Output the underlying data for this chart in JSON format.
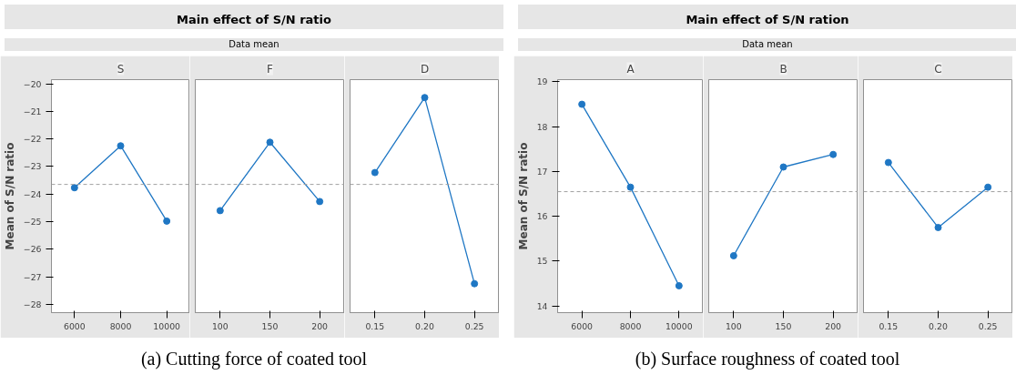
{
  "chart_data": [
    {
      "type": "line",
      "title": "S",
      "ylabel": "Mean of S/N ratio",
      "annotations": [
        "Main effect of S/N ratio",
        "Data mean",
        "(a) Cutting force of coated tool"
      ],
      "categories": [
        "6000",
        "8000",
        "10000"
      ],
      "values": [
        -23.77,
        -22.25,
        -24.98
      ],
      "color": "#1f77c4",
      "marker": "circle",
      "ylim": [
        -28.3,
        -19.85
      ],
      "yticks": [
        -28,
        -27,
        -26,
        -25,
        -24,
        -23,
        -22,
        -21,
        -20
      ],
      "ref_lines": [
        {
          "axis": "y",
          "value": -23.65,
          "color": "#a0a0a0",
          "line_style": "dashed"
        }
      ],
      "grid": false
    },
    {
      "type": "line",
      "title": "F",
      "categories": [
        "100",
        "150",
        "200"
      ],
      "values": [
        -24.6,
        -22.12,
        -24.27
      ],
      "color": "#1f77c4",
      "marker": "circle",
      "ylim": [
        -28.3,
        -19.85
      ],
      "yticks": [
        -28,
        -27,
        -26,
        -25,
        -24,
        -23,
        -22,
        -21,
        -20
      ],
      "tick_labels": "x",
      "ref_lines": [
        {
          "axis": "y",
          "value": -23.65,
          "color": "#a0a0a0",
          "line_style": "dashed"
        }
      ],
      "grid": false
    },
    {
      "type": "line",
      "title": "D",
      "categories": [
        "0.15",
        "0.20",
        "0.25"
      ],
      "values": [
        -23.22,
        -20.5,
        -27.25
      ],
      "color": "#1f77c4",
      "marker": "circle",
      "ylim": [
        -28.3,
        -19.85
      ],
      "yticks": [
        -28,
        -27,
        -26,
        -25,
        -24,
        -23,
        -22,
        -21,
        -20
      ],
      "tick_labels": "x",
      "ref_lines": [
        {
          "axis": "y",
          "value": -23.65,
          "color": "#a0a0a0",
          "line_style": "dashed"
        }
      ],
      "grid": false
    },
    {
      "type": "line",
      "title": "A",
      "ylabel": "Mean of S/N ratio",
      "annotations": [
        "Main effect of S/N ration",
        "Data mean",
        "(b) Surface roughness of coated tool"
      ],
      "categories": [
        "6000",
        "8000",
        "10000"
      ],
      "values": [
        18.5,
        16.65,
        14.45
      ],
      "color": "#1f77c4",
      "marker": "circle",
      "ylim": [
        13.85,
        19.05
      ],
      "yticks": [
        14,
        15,
        16,
        17,
        18,
        19
      ],
      "ref_lines": [
        {
          "axis": "y",
          "value": 16.55,
          "color": "#a0a0a0",
          "line_style": "dashed"
        }
      ],
      "grid": false
    },
    {
      "type": "line",
      "title": "B",
      "categories": [
        "100",
        "150",
        "200"
      ],
      "values": [
        15.12,
        17.1,
        17.38
      ],
      "color": "#1f77c4",
      "marker": "circle",
      "ylim": [
        13.85,
        19.05
      ],
      "yticks": [
        14,
        15,
        16,
        17,
        18,
        19
      ],
      "tick_labels": "x",
      "ref_lines": [
        {
          "axis": "y",
          "value": 16.55,
          "color": "#a0a0a0",
          "line_style": "dashed"
        }
      ],
      "grid": false
    },
    {
      "type": "line",
      "title": "C",
      "categories": [
        "0.15",
        "0.20",
        "0.25"
      ],
      "values": [
        17.2,
        15.75,
        16.65
      ],
      "color": "#1f77c4",
      "marker": "circle",
      "ylim": [
        13.85,
        19.05
      ],
      "yticks": [
        14,
        15,
        16,
        17,
        18,
        19
      ],
      "tick_labels": "x",
      "ref_lines": [
        {
          "axis": "y",
          "value": 16.55,
          "color": "#a0a0a0",
          "line_style": "dashed"
        }
      ],
      "grid": false
    }
  ]
}
